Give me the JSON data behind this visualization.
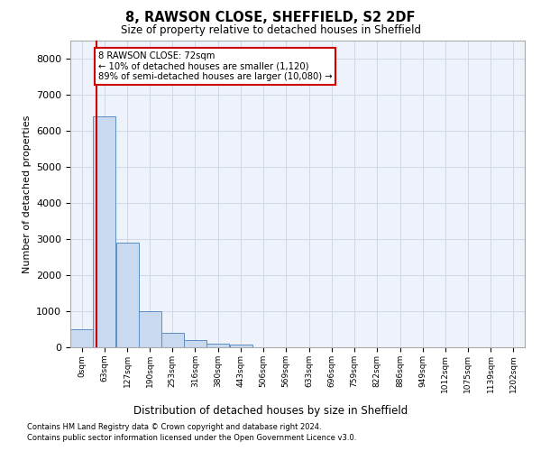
{
  "title1": "8, RAWSON CLOSE, SHEFFIELD, S2 2DF",
  "title2": "Size of property relative to detached houses in Sheffield",
  "xlabel": "Distribution of detached houses by size in Sheffield",
  "ylabel": "Number of detached properties",
  "annotation_line1": "8 RAWSON CLOSE: 72sqm",
  "annotation_line2": "← 10% of detached houses are smaller (1,120)",
  "annotation_line3": "89% of semi-detached houses are larger (10,080) →",
  "property_size_sqm": 72,
  "bin_edges": [
    0,
    63,
    127,
    190,
    253,
    316,
    380,
    443,
    506,
    569,
    633,
    696,
    759,
    822,
    886,
    949,
    1012,
    1075,
    1139,
    1202,
    1265
  ],
  "bar_heights": [
    500,
    6400,
    2900,
    1000,
    400,
    200,
    100,
    75,
    0,
    0,
    0,
    0,
    0,
    0,
    0,
    0,
    0,
    0,
    0,
    0
  ],
  "bar_color": "#c9d9f0",
  "bar_edge_color": "#5a8fc4",
  "vline_color": "#cc0000",
  "annotation_box_edgecolor": "#cc0000",
  "grid_color": "#d0d8e8",
  "background_color": "#eef2fa",
  "ylim": [
    0,
    8500
  ],
  "yticks": [
    0,
    1000,
    2000,
    3000,
    4000,
    5000,
    6000,
    7000,
    8000
  ],
  "footer_line1": "Contains HM Land Registry data © Crown copyright and database right 2024.",
  "footer_line2": "Contains public sector information licensed under the Open Government Licence v3.0."
}
